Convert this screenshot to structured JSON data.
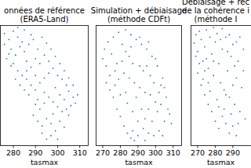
{
  "chart_data": [
    {
      "type": "scatter",
      "title": "onnées de référence\n(ERA5-Land)",
      "xlabel": "tasmax",
      "color": "#1f77b4",
      "marker": "point",
      "tick_labels": "x",
      "xlim": [
        274,
        314
      ],
      "ylim": [
        0,
        1
      ],
      "xticks": [
        280,
        290,
        300,
        310
      ],
      "x": [
        276,
        278,
        280,
        282,
        284,
        279,
        281,
        283,
        285,
        287,
        289,
        291,
        286,
        288,
        290,
        292,
        294,
        296,
        277,
        279,
        282,
        284,
        286,
        288,
        290,
        292,
        294,
        296,
        298,
        300,
        302,
        304,
        299,
        301,
        303,
        305,
        307,
        306,
        304,
        302,
        300,
        298,
        296,
        294,
        292,
        290,
        289,
        291,
        293,
        295,
        297,
        299,
        301,
        303,
        305,
        308,
        309,
        297,
        295,
        293,
        291,
        287,
        285,
        283,
        281,
        280,
        278,
        276,
        293,
        295,
        297,
        299,
        301,
        303,
        305,
        307,
        288,
        285,
        282,
        286,
        290,
        294,
        298,
        300
      ],
      "y": [
        0.93,
        0.88,
        0.95,
        0.9,
        0.86,
        0.8,
        0.75,
        0.82,
        0.78,
        0.84,
        0.88,
        0.8,
        0.7,
        0.65,
        0.72,
        0.68,
        0.75,
        0.7,
        0.72,
        0.66,
        0.62,
        0.58,
        0.55,
        0.5,
        0.46,
        0.52,
        0.56,
        0.6,
        0.64,
        0.58,
        0.55,
        0.5,
        0.48,
        0.42,
        0.38,
        0.45,
        0.4,
        0.33,
        0.3,
        0.28,
        0.32,
        0.36,
        0.4,
        0.35,
        0.3,
        0.34,
        0.25,
        0.2,
        0.16,
        0.22,
        0.18,
        0.12,
        0.2,
        0.15,
        0.25,
        0.35,
        0.42,
        0.08,
        0.05,
        0.1,
        0.38,
        0.42,
        0.46,
        0.5,
        0.55,
        0.68,
        0.76,
        0.84,
        0.9,
        0.85,
        0.8,
        0.74,
        0.68,
        0.62,
        0.56,
        0.5,
        0.92,
        0.96,
        0.98,
        0.62,
        0.58,
        0.44,
        0.26,
        0.05
      ]
    },
    {
      "type": "scatter",
      "title": "Simulation + débiaisage\n(méthode CDFt)",
      "xlabel": "tasmax",
      "color": "#1f77b4",
      "marker": "point",
      "tick_labels": "x",
      "xlim": [
        266,
        315
      ],
      "ylim": [
        0,
        1
      ],
      "xticks": [
        270,
        280,
        290,
        300,
        310
      ],
      "x": [
        270,
        271,
        272,
        273,
        274,
        275,
        276,
        277,
        278,
        279,
        280,
        281,
        282,
        283,
        284,
        285,
        286,
        287,
        288,
        289,
        290,
        291,
        292,
        293,
        294,
        295,
        296,
        297,
        298,
        299,
        300,
        301,
        302,
        303,
        304,
        305,
        306,
        307,
        308,
        309,
        280,
        282,
        284,
        286,
        288,
        290,
        292,
        294,
        296,
        298,
        278,
        276,
        274,
        281,
        285,
        289,
        293,
        297,
        301,
        303,
        279,
        283,
        287,
        291,
        295,
        299,
        302,
        300,
        296,
        283,
        287,
        291,
        294,
        286,
        277,
        272,
        305,
        304
      ],
      "y": [
        0.72,
        0.8,
        0.66,
        0.86,
        0.58,
        0.76,
        0.9,
        0.5,
        0.68,
        0.94,
        0.42,
        0.84,
        0.6,
        0.96,
        0.35,
        0.74,
        0.92,
        0.28,
        0.52,
        0.88,
        0.2,
        0.66,
        0.84,
        0.14,
        0.44,
        0.8,
        0.1,
        0.58,
        0.74,
        0.08,
        0.36,
        0.66,
        0.12,
        0.5,
        0.56,
        0.2,
        0.4,
        0.3,
        0.26,
        0.18,
        0.24,
        0.16,
        0.1,
        0.06,
        0.04,
        0.08,
        0.3,
        0.22,
        0.3,
        0.2,
        0.3,
        0.4,
        0.46,
        0.7,
        0.56,
        0.4,
        0.62,
        0.42,
        0.28,
        0.34,
        0.55,
        0.78,
        0.68,
        0.9,
        0.66,
        0.52,
        0.44,
        0.72,
        0.86,
        0.44,
        0.12,
        0.48,
        0.04,
        0.82,
        0.62,
        0.52,
        0.48,
        0.08
      ]
    },
    {
      "type": "scatter",
      "title": "Débiaisage + rec\nde la cohérence i\n(méthode I",
      "xlabel": "tasmax",
      "color": "#1f77b4",
      "marker": "point",
      "tick_labels": "x",
      "xlim": [
        266,
        315
      ],
      "ylim": [
        0,
        1
      ],
      "xticks": [
        270,
        280,
        290
      ],
      "x": [
        268,
        269,
        270,
        271,
        272,
        273,
        274,
        275,
        276,
        277,
        278,
        279,
        280,
        281,
        282,
        283,
        284,
        285,
        286,
        287,
        288,
        289,
        290,
        291,
        292,
        293,
        294,
        295,
        296,
        297,
        270,
        272,
        274,
        276,
        278,
        280,
        282,
        284,
        286,
        288,
        290,
        292,
        273,
        277,
        281,
        285,
        289,
        293,
        279,
        283,
        287,
        291,
        275,
        271,
        269,
        279,
        284,
        288,
        292,
        296,
        294,
        290,
        286,
        282,
        276,
        274
      ],
      "y": [
        0.85,
        0.92,
        0.78,
        0.95,
        0.88,
        0.7,
        0.82,
        0.96,
        0.64,
        0.9,
        0.76,
        0.58,
        0.86,
        0.93,
        0.68,
        0.52,
        0.8,
        0.46,
        0.9,
        0.62,
        0.4,
        0.74,
        0.84,
        0.34,
        0.56,
        0.7,
        0.28,
        0.48,
        0.62,
        0.22,
        0.6,
        0.5,
        0.42,
        0.34,
        0.28,
        0.2,
        0.14,
        0.24,
        0.18,
        0.1,
        0.16,
        0.08,
        0.55,
        0.45,
        0.38,
        0.3,
        0.26,
        0.18,
        0.7,
        0.88,
        0.78,
        0.66,
        0.72,
        0.68,
        0.74,
        0.98,
        0.97,
        0.92,
        0.86,
        0.8,
        0.9,
        0.5,
        0.42,
        0.32,
        0.52,
        0.62
      ]
    }
  ]
}
